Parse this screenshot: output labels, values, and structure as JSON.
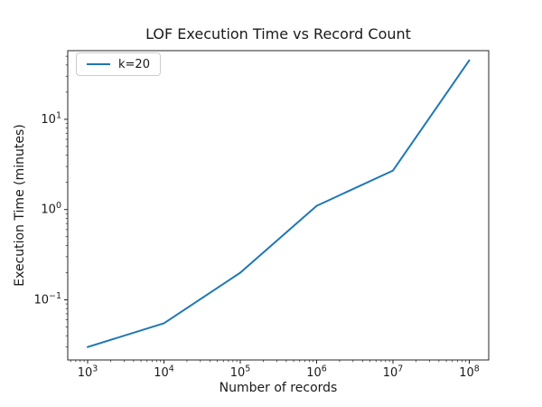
{
  "chart_data": {
    "type": "line",
    "title": "LOF Execution Time vs Record Count",
    "xlabel": "Number of records",
    "ylabel": "Execution Time (minutes)",
    "x_scale": "log",
    "y_scale": "log",
    "grid": false,
    "series": [
      {
        "name": "k=20",
        "color": "#1f77b4",
        "x": [
          1000,
          10000,
          100000,
          1000000,
          10000000,
          100000000
        ],
        "y": [
          0.03,
          0.055,
          0.2,
          1.1,
          2.7,
          45
        ]
      }
    ],
    "x_tick_exponents": [
      3,
      4,
      5,
      6,
      7,
      8
    ],
    "y_tick_exponents": [
      1,
      0,
      -1
    ],
    "xlim": [
      550,
      180000000
    ],
    "ylim": [
      0.0216,
      57.6
    ],
    "legend": {
      "location": "upper left",
      "entries": [
        "k=20"
      ]
    }
  },
  "colors": {
    "line": "#1f77b4",
    "text": "#1a1a1a",
    "spine": "#262626",
    "legend_border": "#cccccc",
    "background": "#ffffff"
  }
}
